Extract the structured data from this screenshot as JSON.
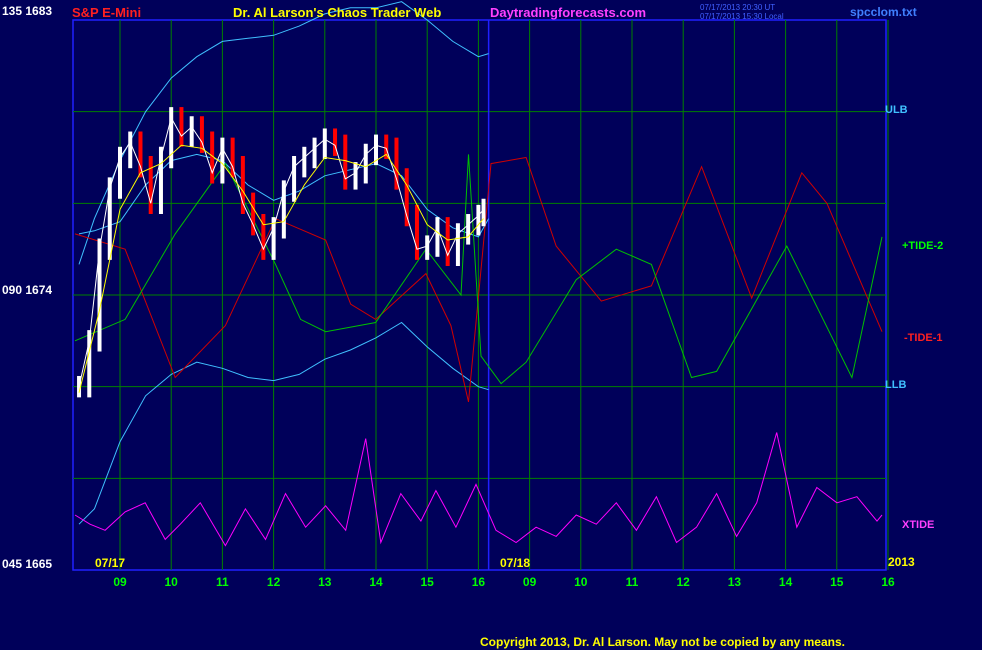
{
  "header": {
    "symbol": "S&P E-Mini",
    "title": "Dr. Al Larson's Chaos Trader Web",
    "site": "Daytradingforecasts.com",
    "time_ut": "07/17/2013 20:30 UT",
    "time_local": "07/17/2013 15:30 Local",
    "file": "spcclom.txt",
    "copyright": "Copyright 2013, Dr. Al Larson. May not be copied by any means."
  },
  "colors": {
    "background": "#00005a",
    "plot_border": "#2020ff",
    "grid": "#008000",
    "price": "#ffffff",
    "price_down": "#ff0000",
    "ma": "#ffff00",
    "band": "#40c0ff",
    "tide_plus": "#00c000",
    "tide_minus": "#d00000",
    "xtide": "#ff00ff"
  },
  "chart_data": {
    "type": "line",
    "title": "S&P E-Mini",
    "y_labels": [
      "135 1683",
      "090 1674",
      "045 1665"
    ],
    "ylim": [
      1665,
      1683
    ],
    "x_ticks": [
      "09",
      "10",
      "11",
      "12",
      "13",
      "14",
      "15",
      "16",
      "09",
      "10",
      "11",
      "12",
      "13",
      "14",
      "15",
      "16"
    ],
    "date_labels": [
      "07/17",
      "07/18"
    ],
    "year_label": "2013",
    "grid": true,
    "right_labels": {
      "ulb": "ULB",
      "tide_plus": "+TIDE-2",
      "tide_minus": "-TIDE-1",
      "llb": "LLB",
      "xtide": "XTIDE"
    },
    "price": {
      "day": "07/17",
      "x_hours": [
        8.2,
        8.4,
        8.6,
        8.8,
        9.0,
        9.2,
        9.4,
        9.6,
        9.8,
        10.0,
        10.2,
        10.4,
        10.6,
        10.8,
        11.0,
        11.2,
        11.4,
        11.6,
        11.8,
        12.0,
        12.2,
        12.4,
        12.6,
        12.8,
        13.0,
        13.2,
        13.4,
        13.6,
        13.8,
        14.0,
        14.2,
        14.4,
        14.6,
        14.8,
        15.0,
        15.2,
        15.4,
        15.6,
        15.8,
        16.0,
        16.1
      ],
      "values": [
        1671.0,
        1672.5,
        1675.5,
        1677.5,
        1678.5,
        1679.0,
        1678.2,
        1677.0,
        1678.5,
        1679.8,
        1679.2,
        1679.5,
        1679.0,
        1678.0,
        1678.8,
        1678.2,
        1677.0,
        1676.3,
        1675.5,
        1676.2,
        1677.4,
        1678.2,
        1678.5,
        1678.8,
        1679.1,
        1678.9,
        1677.8,
        1678.0,
        1678.6,
        1678.9,
        1678.8,
        1677.8,
        1676.6,
        1675.5,
        1675.6,
        1676.2,
        1675.3,
        1676.0,
        1676.3,
        1676.6,
        1676.8
      ]
    },
    "moving_average": {
      "x_hours": [
        8.2,
        8.6,
        9.0,
        9.4,
        9.8,
        10.2,
        10.6,
        11.0,
        11.4,
        11.8,
        12.2,
        12.6,
        13.0,
        13.4,
        13.8,
        14.2,
        14.6,
        15.0,
        15.4,
        15.8,
        16.1
      ],
      "values": [
        1670.8,
        1673.5,
        1676.8,
        1678.0,
        1678.3,
        1678.9,
        1678.8,
        1678.3,
        1677.4,
        1676.3,
        1676.4,
        1677.6,
        1678.5,
        1678.4,
        1678.2,
        1678.6,
        1677.6,
        1676.3,
        1675.8,
        1675.9,
        1676.5
      ]
    },
    "upper_band": {
      "x_hours": [
        8.2,
        8.5,
        9.0,
        9.5,
        10.0,
        10.5,
        11.0,
        11.5,
        12.0,
        12.5,
        13.0,
        13.5,
        14.0,
        14.5,
        15.0,
        15.5,
        16.0,
        16.2
      ],
      "values": [
        1675.0,
        1676.5,
        1678.4,
        1680.0,
        1681.1,
        1681.8,
        1682.3,
        1682.4,
        1682.5,
        1682.8,
        1683.2,
        1683.4,
        1683.4,
        1683.6,
        1683.0,
        1682.3,
        1681.8,
        1681.9
      ]
    },
    "mid_band": {
      "x_hours": [
        8.2,
        8.5,
        9.0,
        9.5,
        10.0,
        10.5,
        11.0,
        11.5,
        12.0,
        12.5,
        13.0,
        13.5,
        14.0,
        14.5,
        15.0,
        15.5,
        16.0,
        16.2
      ],
      "values": [
        1676.0,
        1676.1,
        1676.4,
        1677.6,
        1678.4,
        1678.6,
        1678.4,
        1677.6,
        1677.1,
        1677.4,
        1677.9,
        1678.1,
        1678.3,
        1677.9,
        1676.8,
        1676.2,
        1675.9,
        1676.5
      ]
    },
    "lower_band": {
      "x_hours": [
        8.2,
        8.5,
        9.0,
        9.5,
        10.0,
        10.5,
        11.0,
        11.5,
        12.0,
        12.5,
        13.0,
        13.5,
        14.0,
        14.5,
        15.0,
        15.5,
        16.0,
        16.2
      ],
      "values": [
        1666.5,
        1667.0,
        1669.2,
        1670.7,
        1671.4,
        1671.8,
        1671.6,
        1671.3,
        1671.2,
        1671.4,
        1671.9,
        1672.2,
        1672.6,
        1673.1,
        1672.3,
        1671.6,
        1671.0,
        1670.9
      ]
    },
    "tide_plus": {
      "x_slot": [
        0.0,
        1.0,
        2.0,
        3.0,
        4.0,
        4.5,
        5.0,
        6.0,
        7.0,
        7.7,
        7.85,
        8.1,
        8.5,
        9.0,
        10.0,
        10.8,
        11.5,
        12.3,
        12.8,
        14.2,
        15.5,
        16.1
      ],
      "values": [
        1672.5,
        1673.2,
        1676.0,
        1678.3,
        1675.0,
        1673.2,
        1672.8,
        1673.1,
        1675.5,
        1674.0,
        1678.6,
        1672.0,
        1671.1,
        1671.8,
        1674.5,
        1675.5,
        1675.0,
        1671.3,
        1671.5,
        1675.6,
        1671.3,
        1675.9
      ]
    },
    "tide_minus": {
      "x_slot": [
        0.0,
        1.0,
        2.0,
        3.0,
        4.0,
        5.0,
        5.5,
        6.0,
        7.0,
        7.5,
        7.85,
        8.3,
        9.0,
        9.6,
        10.5,
        11.5,
        12.5,
        13.5,
        14.5,
        15.0,
        16.1
      ],
      "values": [
        1676.0,
        1675.5,
        1671.3,
        1673.0,
        1676.5,
        1675.8,
        1673.7,
        1673.2,
        1674.7,
        1673.0,
        1670.5,
        1678.3,
        1678.5,
        1675.6,
        1673.8,
        1674.3,
        1678.2,
        1673.9,
        1678.0,
        1677.0,
        1672.8
      ]
    },
    "xtide": {
      "x_slot": [
        0.0,
        0.3,
        0.6,
        1.0,
        1.4,
        1.8,
        2.1,
        2.5,
        3.0,
        3.4,
        3.8,
        4.2,
        4.6,
        5.0,
        5.4,
        5.8,
        6.1,
        6.5,
        6.9,
        7.2,
        7.6,
        8.0,
        8.4,
        8.8,
        9.2,
        9.6,
        10.0,
        10.4,
        10.8,
        11.2,
        11.6,
        12.0,
        12.4,
        12.8,
        13.2,
        13.6,
        14.0,
        14.4,
        14.8,
        15.2,
        15.6,
        16.0,
        16.1
      ],
      "values": [
        1666.8,
        1666.5,
        1666.3,
        1666.9,
        1667.2,
        1666.0,
        1666.5,
        1667.2,
        1665.8,
        1667.0,
        1666.0,
        1667.5,
        1666.4,
        1667.1,
        1666.3,
        1669.3,
        1665.9,
        1667.5,
        1666.6,
        1667.6,
        1666.4,
        1667.8,
        1666.3,
        1665.9,
        1666.4,
        1666.1,
        1666.8,
        1666.5,
        1667.2,
        1666.3,
        1667.4,
        1665.9,
        1666.4,
        1667.5,
        1666.1,
        1667.2,
        1669.5,
        1666.4,
        1667.7,
        1667.2,
        1667.4,
        1666.6,
        1666.8
      ]
    }
  }
}
